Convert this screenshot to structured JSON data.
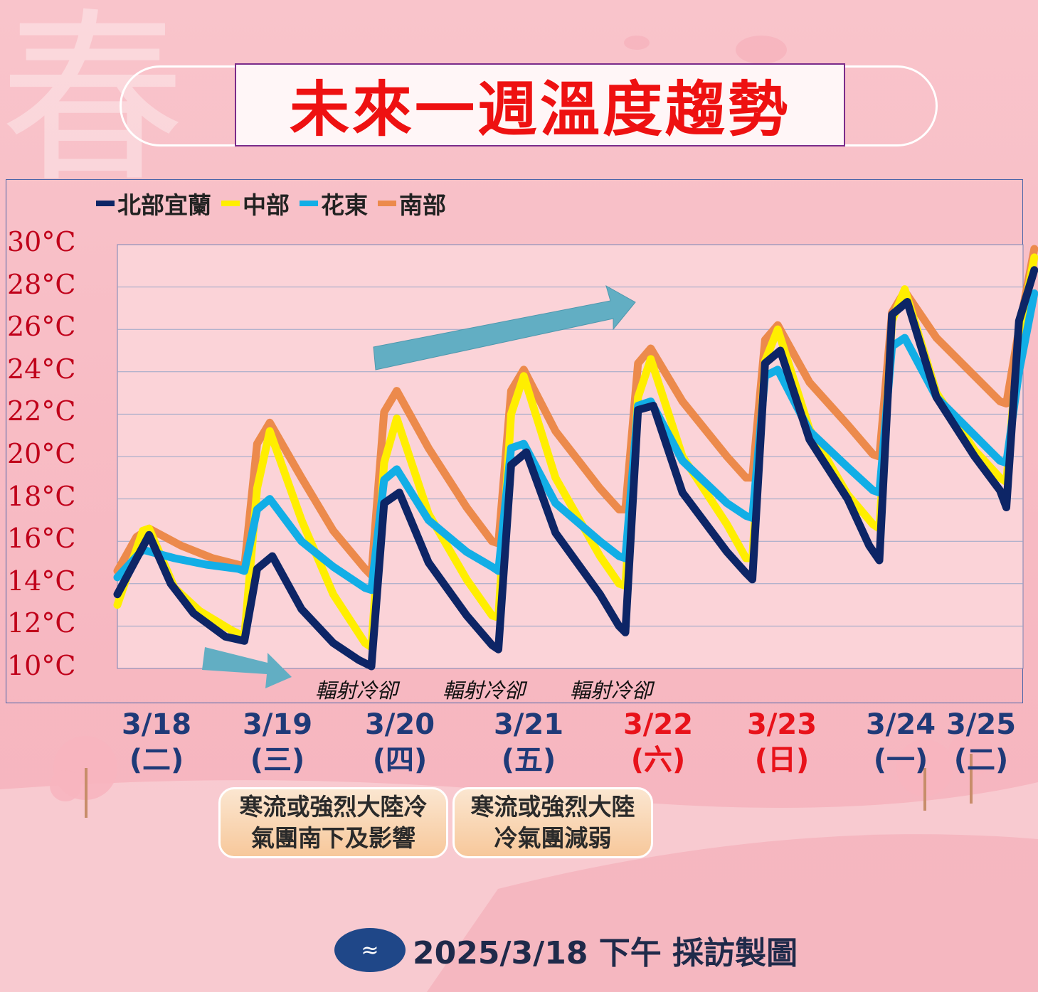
{
  "title": "未來一週溫度趨勢",
  "footer": {
    "logo_icon": "cwa-logo-icon",
    "text": "2025/3/18 下午 採訪製圖"
  },
  "notes": [
    {
      "line1": "寒流或強烈大陸冷",
      "line2": "氣團南下及影響"
    },
    {
      "line1": "寒流或強烈大陸",
      "line2": "冷氣團減弱"
    }
  ],
  "annotations": [
    "輻射冷卻",
    "輻射冷卻",
    "輻射冷卻"
  ],
  "chart_data": {
    "type": "line",
    "ylim": [
      10,
      30
    ],
    "yticks": [
      "10°C",
      "12°C",
      "14°C",
      "16°C",
      "18°C",
      "20°C",
      "22°C",
      "24°C",
      "26°C",
      "28°C",
      "30°C"
    ],
    "grid": true,
    "legend": "top-left",
    "categories": [
      {
        "date": "3/18",
        "day": "(二)",
        "weekend": false
      },
      {
        "date": "3/19",
        "day": "(三)",
        "weekend": false
      },
      {
        "date": "3/20",
        "day": "(四)",
        "weekend": false
      },
      {
        "date": "3/21",
        "day": "(五)",
        "weekend": false
      },
      {
        "date": "3/22",
        "day": "(六)",
        "weekend": true
      },
      {
        "date": "3/23",
        "day": "(日)",
        "weekend": true
      },
      {
        "date": "3/24",
        "day": "(一)",
        "weekend": false
      },
      {
        "date": "3/25",
        "day": "(二)",
        "weekend": false
      }
    ],
    "series": [
      {
        "name": "北部宜蘭",
        "color": "#0d2566",
        "values": [
          [
            0,
            13.5
          ],
          [
            0.25,
            16.3
          ],
          [
            0.42,
            14
          ],
          [
            0.6,
            12.6
          ],
          [
            0.85,
            11.5
          ],
          [
            1,
            11.3
          ],
          [
            1.1,
            14.7
          ],
          [
            1.22,
            15.3
          ],
          [
            1.45,
            12.8
          ],
          [
            1.7,
            11.2
          ],
          [
            1.9,
            10.4
          ],
          [
            2,
            10.1
          ],
          [
            2.1,
            17.8
          ],
          [
            2.22,
            18.3
          ],
          [
            2.45,
            15
          ],
          [
            2.75,
            12.5
          ],
          [
            2.95,
            11.1
          ],
          [
            3,
            10.9
          ],
          [
            3.1,
            19.6
          ],
          [
            3.22,
            20.2
          ],
          [
            3.45,
            16.4
          ],
          [
            3.8,
            13.5
          ],
          [
            3.95,
            12.0
          ],
          [
            4,
            11.7
          ],
          [
            4.1,
            22.2
          ],
          [
            4.22,
            22.4
          ],
          [
            4.45,
            18.3
          ],
          [
            4.8,
            15.5
          ],
          [
            4.95,
            14.5
          ],
          [
            5,
            14.2
          ],
          [
            5.1,
            24.4
          ],
          [
            5.22,
            25.0
          ],
          [
            5.45,
            20.8
          ],
          [
            5.75,
            18.0
          ],
          [
            5.92,
            15.8
          ],
          [
            6,
            15.1
          ],
          [
            6.1,
            26.7
          ],
          [
            6.22,
            27.3
          ],
          [
            6.45,
            22.8
          ],
          [
            6.75,
            20.0
          ],
          [
            6.95,
            18.4
          ],
          [
            7,
            17.6
          ],
          [
            7.1,
            26.4
          ],
          [
            7.22,
            28.8
          ]
        ]
      },
      {
        "name": "中部",
        "color": "#ffee00",
        "values": [
          [
            0,
            13.0
          ],
          [
            0.2,
            16.5
          ],
          [
            0.25,
            16.6
          ],
          [
            0.45,
            13.8
          ],
          [
            0.65,
            12.7
          ],
          [
            0.9,
            11.8
          ],
          [
            1,
            11.5
          ],
          [
            1.1,
            18.5
          ],
          [
            1.2,
            21.2
          ],
          [
            1.45,
            17.0
          ],
          [
            1.7,
            13.5
          ],
          [
            1.95,
            11.2
          ],
          [
            2,
            11.0
          ],
          [
            2.1,
            19.7
          ],
          [
            2.2,
            21.8
          ],
          [
            2.45,
            17.3
          ],
          [
            2.75,
            14.2
          ],
          [
            2.95,
            12.5
          ],
          [
            3,
            12.4
          ],
          [
            3.1,
            22.0
          ],
          [
            3.2,
            23.8
          ],
          [
            3.45,
            19.0
          ],
          [
            3.8,
            15.3
          ],
          [
            3.95,
            14.0
          ],
          [
            4,
            13.9
          ],
          [
            4.1,
            22.8
          ],
          [
            4.2,
            24.6
          ],
          [
            4.45,
            20.0
          ],
          [
            4.8,
            16.8
          ],
          [
            4.95,
            15.2
          ],
          [
            5,
            15.2
          ],
          [
            5.1,
            24.5
          ],
          [
            5.2,
            26.0
          ],
          [
            5.45,
            21.3
          ],
          [
            5.75,
            18.2
          ],
          [
            5.95,
            16.8
          ],
          [
            6,
            16.6
          ],
          [
            6.1,
            26.4
          ],
          [
            6.2,
            27.9
          ],
          [
            6.45,
            23.0
          ],
          [
            6.75,
            20.3
          ],
          [
            6.95,
            19.0
          ],
          [
            7,
            18.8
          ],
          [
            7.1,
            25.7
          ],
          [
            7.22,
            29.4
          ]
        ]
      },
      {
        "name": "花東",
        "color": "#12aee6",
        "values": [
          [
            0,
            14.3
          ],
          [
            0.2,
            15.6
          ],
          [
            0.45,
            15.2
          ],
          [
            0.7,
            14.9
          ],
          [
            0.95,
            14.7
          ],
          [
            1,
            14.6
          ],
          [
            1.1,
            17.5
          ],
          [
            1.2,
            18.0
          ],
          [
            1.45,
            16.0
          ],
          [
            1.7,
            14.8
          ],
          [
            1.95,
            13.8
          ],
          [
            2,
            13.7
          ],
          [
            2.1,
            18.9
          ],
          [
            2.2,
            19.4
          ],
          [
            2.45,
            17.0
          ],
          [
            2.75,
            15.5
          ],
          [
            2.95,
            14.8
          ],
          [
            3,
            14.6
          ],
          [
            3.1,
            20.4
          ],
          [
            3.2,
            20.6
          ],
          [
            3.45,
            17.8
          ],
          [
            3.8,
            16.0
          ],
          [
            3.95,
            15.3
          ],
          [
            4,
            15.2
          ],
          [
            4.1,
            22.4
          ],
          [
            4.2,
            22.6
          ],
          [
            4.45,
            19.8
          ],
          [
            4.8,
            17.8
          ],
          [
            4.95,
            17.2
          ],
          [
            5,
            17.1
          ],
          [
            5.1,
            23.8
          ],
          [
            5.2,
            24.1
          ],
          [
            5.45,
            21.2
          ],
          [
            5.75,
            19.5
          ],
          [
            5.95,
            18.4
          ],
          [
            6,
            18.3
          ],
          [
            6.1,
            25.2
          ],
          [
            6.2,
            25.6
          ],
          [
            6.45,
            22.8
          ],
          [
            6.75,
            21.0
          ],
          [
            6.95,
            19.8
          ],
          [
            7,
            19.7
          ],
          [
            7.1,
            24.0
          ],
          [
            7.22,
            27.7
          ]
        ]
      },
      {
        "name": "南部",
        "color": "#ec8a4c",
        "values": [
          [
            0,
            14.6
          ],
          [
            0.15,
            16.2
          ],
          [
            0.25,
            16.6
          ],
          [
            0.5,
            15.8
          ],
          [
            0.75,
            15.2
          ],
          [
            0.95,
            14.9
          ],
          [
            1,
            14.8
          ],
          [
            1.1,
            20.6
          ],
          [
            1.2,
            21.6
          ],
          [
            1.45,
            19.0
          ],
          [
            1.7,
            16.5
          ],
          [
            1.95,
            14.7
          ],
          [
            2,
            14.4
          ],
          [
            2.1,
            22.1
          ],
          [
            2.2,
            23.1
          ],
          [
            2.45,
            20.4
          ],
          [
            2.75,
            17.6
          ],
          [
            2.95,
            16.0
          ],
          [
            3,
            15.9
          ],
          [
            3.1,
            23.1
          ],
          [
            3.2,
            24.1
          ],
          [
            3.45,
            21.2
          ],
          [
            3.8,
            18.5
          ],
          [
            3.95,
            17.5
          ],
          [
            4,
            17.5
          ],
          [
            4.1,
            24.4
          ],
          [
            4.2,
            25.1
          ],
          [
            4.45,
            22.6
          ],
          [
            4.8,
            20.0
          ],
          [
            4.95,
            19.0
          ],
          [
            5,
            19.0
          ],
          [
            5.1,
            25.5
          ],
          [
            5.2,
            26.2
          ],
          [
            5.45,
            23.5
          ],
          [
            5.75,
            21.5
          ],
          [
            5.95,
            20.1
          ],
          [
            6,
            20.0
          ],
          [
            6.1,
            26.8
          ],
          [
            6.2,
            27.8
          ],
          [
            6.45,
            25.6
          ],
          [
            6.75,
            23.8
          ],
          [
            6.95,
            22.6
          ],
          [
            7,
            22.5
          ],
          [
            7.1,
            26.0
          ],
          [
            7.22,
            29.8
          ]
        ]
      }
    ]
  }
}
